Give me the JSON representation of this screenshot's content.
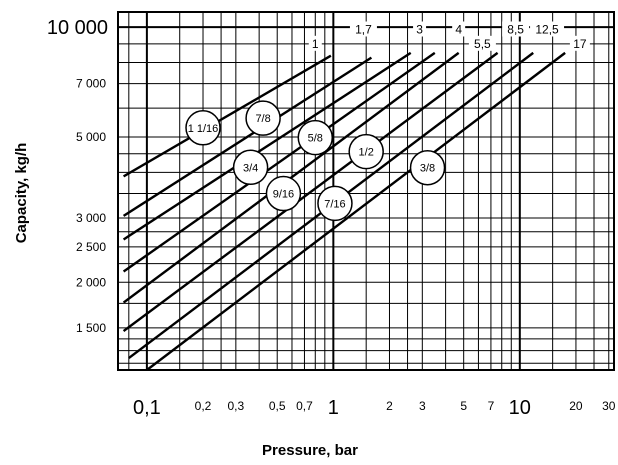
{
  "chart_data": {
    "type": "line",
    "xlabel": "Pressure, bar",
    "ylabel": "Capacity, kg/h",
    "x_scale": "log",
    "y_scale": "log",
    "xlim": [
      0.07,
      32
    ],
    "ylim": [
      1150,
      11000
    ],
    "x_ticks": [
      {
        "value": 0.1,
        "label": "0,1",
        "major": true
      },
      {
        "value": 0.2,
        "label": "0,2",
        "major": false
      },
      {
        "value": 0.3,
        "label": "0,3",
        "major": false
      },
      {
        "value": 0.5,
        "label": "0,5",
        "major": false
      },
      {
        "value": 0.7,
        "label": "0,7",
        "major": false
      },
      {
        "value": 1,
        "label": "1",
        "major": true
      },
      {
        "value": 2,
        "label": "2",
        "major": false
      },
      {
        "value": 3,
        "label": "3",
        "major": false
      },
      {
        "value": 5,
        "label": "5",
        "major": false
      },
      {
        "value": 7,
        "label": "7",
        "major": false
      },
      {
        "value": 10,
        "label": "10",
        "major": true
      },
      {
        "value": 20,
        "label": "20",
        "major": false
      },
      {
        "value": 30,
        "label": "30",
        "major": false
      }
    ],
    "y_ticks": [
      {
        "value": 1500,
        "label": "1 500",
        "major": false
      },
      {
        "value": 2000,
        "label": "2 000",
        "major": false
      },
      {
        "value": 2500,
        "label": "2 500",
        "major": false
      },
      {
        "value": 3000,
        "label": "3 000",
        "major": false
      },
      {
        "value": 5000,
        "label": "5 000",
        "major": false
      },
      {
        "value": 7000,
        "label": "7 000",
        "major": false
      },
      {
        "value": 10000,
        "label": "10 000",
        "major": true
      }
    ],
    "x_grid": [
      0.08,
      0.1,
      0.15,
      0.2,
      0.25,
      0.3,
      0.4,
      0.5,
      0.6,
      0.7,
      0.8,
      0.9,
      1,
      1.5,
      2,
      2.5,
      3,
      4,
      5,
      6,
      7,
      8,
      9,
      10,
      15,
      20,
      25,
      30
    ],
    "y_grid": [
      1200,
      1300,
      1400,
      1500,
      1750,
      2000,
      2250,
      2500,
      2750,
      3000,
      3500,
      4000,
      4500,
      5000,
      6000,
      7000,
      8000,
      9000,
      10000
    ],
    "series": [
      {
        "name": "1",
        "x": [
          0.075,
          0.97
        ],
        "y": [
          3900,
          8350
        ]
      },
      {
        "name": "1,7",
        "x": [
          0.075,
          1.6
        ],
        "y": [
          3040,
          8250
        ]
      },
      {
        "name": "3",
        "x": [
          0.075,
          2.6
        ],
        "y": [
          2620,
          8500
        ]
      },
      {
        "name": "4",
        "x": [
          0.075,
          3.5
        ],
        "y": [
          2140,
          8500
        ]
      },
      {
        "name": "5,5",
        "x": [
          0.075,
          4.7
        ],
        "y": [
          1760,
          8500
        ]
      },
      {
        "name": "8,5",
        "x": [
          0.075,
          7.6
        ],
        "y": [
          1470,
          8500
        ]
      },
      {
        "name": "12,5",
        "x": [
          0.08,
          11.8
        ],
        "y": [
          1240,
          8500
        ]
      },
      {
        "name": "17",
        "x": [
          0.1,
          17.5
        ],
        "y": [
          1150,
          8500
        ]
      }
    ],
    "top_labels": [
      {
        "text": "1",
        "x": 0.8,
        "y": 9000
      },
      {
        "text": "1,7",
        "x": 1.45,
        "y": 9850
      },
      {
        "text": "3",
        "x": 2.9,
        "y": 9850
      },
      {
        "text": "4",
        "x": 4.7,
        "y": 9850
      },
      {
        "text": "5,5",
        "x": 6.3,
        "y": 9000
      },
      {
        "text": "8,5",
        "x": 9.5,
        "y": 9850
      },
      {
        "text": "12,5",
        "x": 14,
        "y": 9850
      },
      {
        "text": "17",
        "x": 21,
        "y": 9000
      }
    ],
    "size_markers": [
      {
        "text": "1 1/16",
        "x": 0.2,
        "y": 5300
      },
      {
        "text": "7/8",
        "x": 0.42,
        "y": 5630
      },
      {
        "text": "3/4",
        "x": 0.36,
        "y": 4130
      },
      {
        "text": "5/8",
        "x": 0.8,
        "y": 4980
      },
      {
        "text": "9/16",
        "x": 0.54,
        "y": 3500
      },
      {
        "text": "1/2",
        "x": 1.5,
        "y": 4560
      },
      {
        "text": "7/16",
        "x": 1.02,
        "y": 3290
      },
      {
        "text": "3/8",
        "x": 3.2,
        "y": 4120
      }
    ]
  }
}
